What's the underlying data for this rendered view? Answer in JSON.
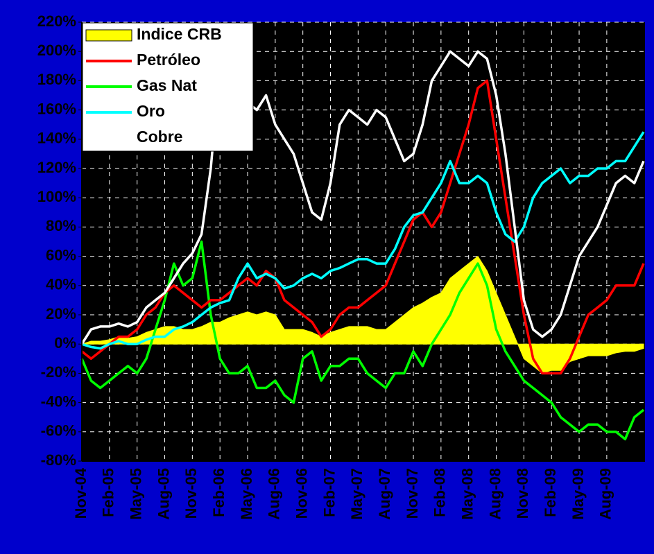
{
  "chart_data": {
    "type": "line",
    "categories": [
      "Nov-04",
      null,
      null,
      "Feb-05",
      null,
      null,
      "May-05",
      null,
      null,
      "Aug-05",
      null,
      null,
      "Nov-05",
      null,
      null,
      "Feb-06",
      null,
      null,
      "May-06",
      null,
      null,
      "Aug-06",
      null,
      null,
      "Nov-06",
      null,
      null,
      "Feb-07",
      null,
      null,
      "May-07",
      null,
      null,
      "Aug-07",
      null,
      null,
      "Nov-07",
      null,
      null,
      "Feb-08",
      null,
      null,
      "May-08",
      null,
      null,
      "Aug-08",
      null,
      null,
      "Nov-08",
      null,
      null,
      "Feb-09",
      null,
      null,
      "May-09",
      null,
      null,
      "Aug-09",
      null,
      null,
      null,
      null
    ],
    "ylim": [
      -80,
      220
    ],
    "yticks": [
      {
        "value": -80,
        "label": "-80%"
      },
      {
        "value": -60,
        "label": "-60%"
      },
      {
        "value": -40,
        "label": "-40%"
      },
      {
        "value": -20,
        "label": "-20%"
      },
      {
        "value": 0,
        "label": "0%"
      },
      {
        "value": 20,
        "label": "20%"
      },
      {
        "value": 40,
        "label": "40%"
      },
      {
        "value": 60,
        "label": "60%"
      },
      {
        "value": 80,
        "label": "80%"
      },
      {
        "value": 100,
        "label": "100%"
      },
      {
        "value": 120,
        "label": "120%"
      },
      {
        "value": 140,
        "label": "140%"
      },
      {
        "value": 160,
        "label": "160%"
      },
      {
        "value": 180,
        "label": "180%"
      },
      {
        "value": 200,
        "label": "200%"
      },
      {
        "value": 220,
        "label": "220%"
      }
    ],
    "grid": true,
    "legend": "upper left",
    "series": [
      {
        "name": "Indice CRB",
        "color": "#ffff00",
        "kind": "area",
        "values": [
          0,
          2,
          2,
          3,
          5,
          4,
          5,
          8,
          10,
          12,
          12,
          10,
          10,
          12,
          15,
          15,
          18,
          20,
          22,
          20,
          22,
          20,
          10,
          10,
          10,
          8,
          5,
          8,
          10,
          12,
          12,
          12,
          10,
          10,
          15,
          20,
          25,
          28,
          32,
          35,
          45,
          50,
          55,
          60,
          50,
          35,
          20,
          5,
          -10,
          -15,
          -20,
          -18,
          -18,
          -12,
          -10,
          -8,
          -8,
          -8,
          -6,
          -5,
          -5,
          -3
        ]
      },
      {
        "name": "Petróleo",
        "color": "#ff0000",
        "values": [
          -5,
          -10,
          -5,
          0,
          5,
          5,
          10,
          20,
          25,
          35,
          40,
          35,
          30,
          25,
          30,
          30,
          35,
          40,
          45,
          40,
          50,
          45,
          30,
          25,
          20,
          15,
          5,
          10,
          20,
          25,
          25,
          30,
          35,
          40,
          55,
          70,
          85,
          90,
          80,
          90,
          110,
          130,
          150,
          175,
          180,
          140,
          100,
          60,
          20,
          -10,
          -20,
          -20,
          -20,
          -10,
          5,
          20,
          25,
          30,
          40,
          40,
          40,
          55
        ]
      },
      {
        "name": "Gas Nat",
        "color": "#00ff00",
        "values": [
          -10,
          -25,
          -30,
          -25,
          -20,
          -15,
          -20,
          -10,
          10,
          30,
          55,
          40,
          45,
          70,
          20,
          -10,
          -20,
          -20,
          -15,
          -30,
          -30,
          -25,
          -35,
          -40,
          -10,
          -5,
          -25,
          -15,
          -15,
          -10,
          -10,
          -20,
          -25,
          -30,
          -20,
          -20,
          -5,
          -15,
          0,
          10,
          20,
          35,
          45,
          55,
          40,
          10,
          -5,
          -15,
          -25,
          -30,
          -35,
          -40,
          -50,
          -55,
          -60,
          -55,
          -55,
          -60,
          -60,
          -65,
          -50,
          -45
        ]
      },
      {
        "name": "Oro",
        "color": "#00ffff",
        "values": [
          0,
          -2,
          -3,
          0,
          2,
          0,
          0,
          3,
          5,
          5,
          10,
          12,
          15,
          20,
          25,
          28,
          30,
          45,
          55,
          45,
          48,
          45,
          38,
          40,
          45,
          48,
          45,
          50,
          52,
          55,
          58,
          58,
          55,
          55,
          65,
          80,
          88,
          90,
          100,
          110,
          125,
          110,
          110,
          115,
          110,
          90,
          75,
          70,
          80,
          100,
          110,
          115,
          120,
          110,
          115,
          115,
          120,
          120,
          125,
          125,
          135,
          145
        ]
      },
      {
        "name": "Cobre",
        "color": "#ffffff",
        "values": [
          0,
          10,
          12,
          12,
          14,
          12,
          15,
          25,
          30,
          35,
          45,
          55,
          62,
          75,
          120,
          190,
          175,
          170,
          165,
          160,
          170,
          150,
          140,
          130,
          110,
          90,
          85,
          110,
          150,
          160,
          155,
          150,
          160,
          155,
          140,
          125,
          130,
          150,
          180,
          190,
          200,
          195,
          190,
          200,
          195,
          170,
          130,
          80,
          30,
          10,
          5,
          10,
          20,
          40,
          60,
          70,
          80,
          95,
          110,
          115,
          110,
          125
        ]
      }
    ]
  }
}
